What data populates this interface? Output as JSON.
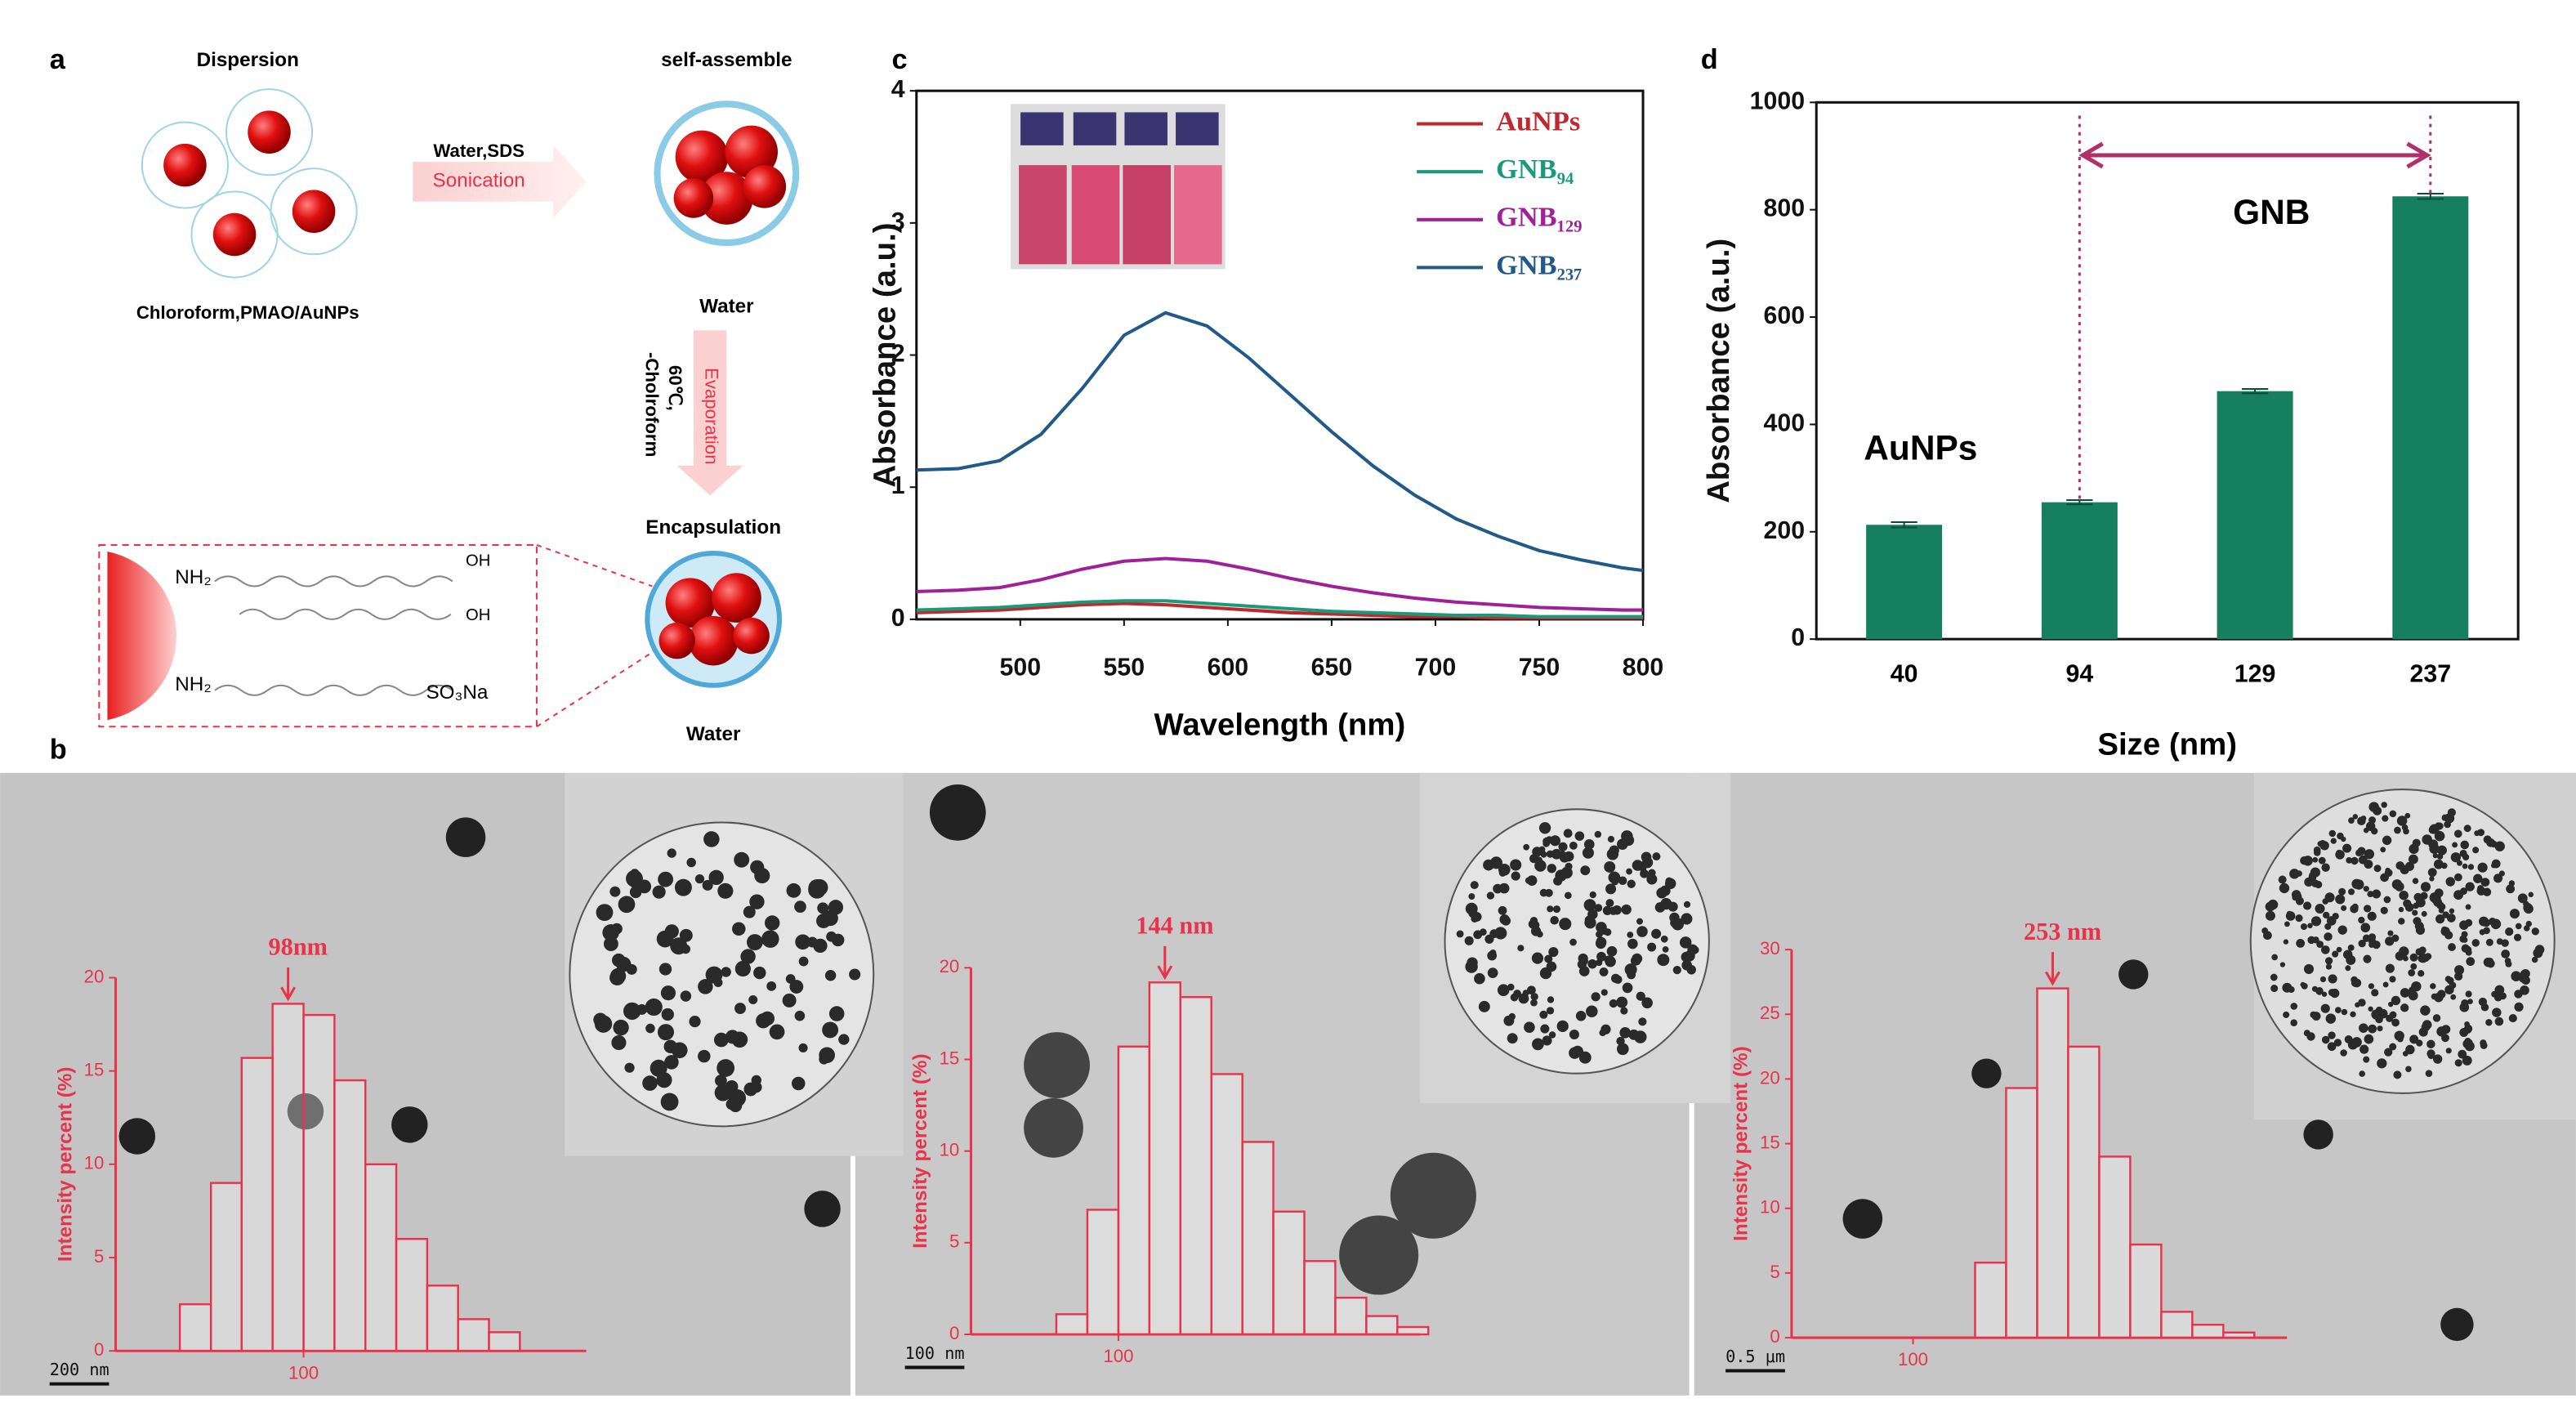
{
  "panel_labels": [
    "a",
    "b",
    "c",
    "d"
  ],
  "scheme": {
    "dispersion": "Dispersion",
    "solvent": "Chloroform,PMAO/AuNPs",
    "step1": "Water,SDS",
    "step1b": "Sonication",
    "self_assemble": "self-assemble",
    "water1": "Water",
    "temp": "60℃,",
    "remove": "-Cholroform",
    "evaporation": "Evaporation",
    "encapsulation": "Encapsulation",
    "water2": "Water",
    "nh2": "NH₂",
    "oh": "OH",
    "so3na": "SO₃Na"
  },
  "chart_data": [
    {
      "type": "line",
      "xlabel": "Wavelength (nm)",
      "ylabel": "Absorbance (a.u.)",
      "x": [
        450,
        470,
        490,
        510,
        530,
        550,
        570,
        590,
        610,
        630,
        650,
        670,
        690,
        710,
        730,
        750,
        770,
        790,
        800
      ],
      "series": [
        {
          "name": "AuNPs",
          "color": "#c0282d",
          "values": [
            0.05,
            0.06,
            0.07,
            0.09,
            0.11,
            0.12,
            0.11,
            0.09,
            0.07,
            0.05,
            0.04,
            0.03,
            0.02,
            0.02,
            0.01,
            0.01,
            0.01,
            0.01,
            0.01
          ]
        },
        {
          "name": "GNB₉₄",
          "color": "#1a9a7a",
          "values": [
            0.07,
            0.08,
            0.09,
            0.11,
            0.13,
            0.14,
            0.14,
            0.12,
            0.1,
            0.08,
            0.06,
            0.05,
            0.04,
            0.03,
            0.03,
            0.02,
            0.02,
            0.02,
            0.02
          ]
        },
        {
          "name": "GNB₁₂₉",
          "color": "#a0209a",
          "values": [
            0.21,
            0.22,
            0.24,
            0.3,
            0.38,
            0.44,
            0.46,
            0.44,
            0.38,
            0.31,
            0.25,
            0.2,
            0.16,
            0.13,
            0.11,
            0.09,
            0.08,
            0.07,
            0.07
          ]
        },
        {
          "name": "GNB₂₃₇",
          "color": "#1f5a8a",
          "values": [
            1.13,
            1.14,
            1.2,
            1.4,
            1.75,
            2.15,
            2.32,
            2.22,
            1.98,
            1.7,
            1.42,
            1.16,
            0.94,
            0.76,
            0.63,
            0.52,
            0.45,
            0.39,
            0.37
          ]
        }
      ],
      "xlim": [
        450,
        800
      ],
      "xticks": [
        500,
        550,
        600,
        650,
        700,
        750,
        800
      ],
      "ylim": [
        0,
        4
      ],
      "yticks": [
        0,
        1,
        2,
        3,
        4
      ]
    },
    {
      "type": "bar",
      "xlabel": "Size (nm)",
      "ylabel": "Absorbance (a.u.)",
      "categories": [
        "40",
        "94",
        "129",
        "237"
      ],
      "values": [
        213,
        255,
        462,
        825
      ],
      "errors": [
        5,
        4,
        4,
        5
      ],
      "color": "#16805e",
      "ylim": [
        0,
        1000
      ],
      "yticks": [
        0,
        200,
        400,
        600,
        800,
        1000
      ],
      "annotations": [
        "AuNPs",
        "GNB"
      ]
    },
    {
      "type": "histogram",
      "ylabel": "Intensity percent (%)",
      "peak_label": "98nm",
      "scale_bar": "200 nm",
      "bins": [
        48.2,
        57.9,
        69.4,
        83.3,
        100,
        120,
        144,
        172.8,
        207.4,
        248.8,
        298.6,
        358.3
      ],
      "values": [
        2.5,
        9,
        15.7,
        18.6,
        18,
        14.5,
        10,
        6,
        3.5,
        1.7,
        1
      ],
      "color": "#e8334a",
      "xscale": "log",
      "xlim": [
        33,
        530
      ],
      "xticks": [
        100
      ],
      "ylim": [
        0,
        20
      ],
      "yticks": [
        0,
        5,
        10,
        15,
        20
      ]
    },
    {
      "type": "histogram",
      "ylabel": "Intensity percent (%)",
      "peak_label": "144 nm",
      "scale_bar": "100 nm",
      "bins": [
        69.4,
        83.3,
        100,
        120,
        144,
        172.8,
        207.4,
        248.8,
        298.6,
        358.3,
        430,
        516,
        619.2
      ],
      "values": [
        1.1,
        6.8,
        15.7,
        19.2,
        18.4,
        14.2,
        10.5,
        6.7,
        4,
        2,
        1,
        0.4
      ],
      "color": "#e8334a",
      "xscale": "log",
      "xlim": [
        42,
        590
      ],
      "xticks": [
        100
      ],
      "ylim": [
        0,
        20
      ],
      "yticks": [
        0,
        5,
        10,
        15,
        20
      ]
    },
    {
      "type": "histogram",
      "ylabel": "Intensity percent (%)",
      "peak_label": "253 nm",
      "scale_bar": "0.5 μm",
      "bins": [
        144,
        172.8,
        207.4,
        248.8,
        298.6,
        358.3,
        430,
        516,
        619.2,
        743
      ],
      "values": [
        5.8,
        19.3,
        27,
        22.5,
        14,
        7.2,
        2,
        1,
        0.4
      ],
      "color": "#e8334a",
      "xscale": "log",
      "xlim": [
        49,
        900
      ],
      "xticks": [
        100
      ],
      "ylim": [
        0,
        30
      ],
      "yticks": [
        0,
        5,
        10,
        15,
        20,
        25,
        30
      ]
    }
  ]
}
